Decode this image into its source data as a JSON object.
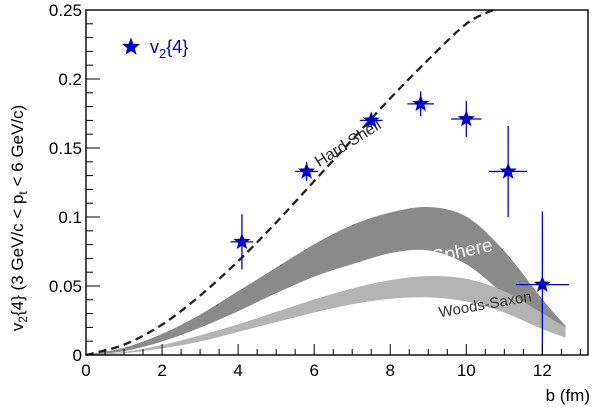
{
  "chart_data": {
    "type": "scatter",
    "xlabel": "b (fm)",
    "ylabel": "v{4} (3 GeV/c < p < 6 GeV/c)",
    "ylabel_parts": {
      "v_base": "v",
      "v_sub": "2",
      "brace": "{4} (3 GeV/c < p",
      "p_sub": "t",
      "tail": " < 6 GeV/c)"
    },
    "xlim": [
      0,
      13.2
    ],
    "ylim": [
      0,
      0.25
    ],
    "x_ticks": [
      0,
      2,
      4,
      6,
      8,
      10,
      12
    ],
    "x_tick_labels": [
      "0",
      "2",
      "4",
      "6",
      "8",
      "10",
      "12"
    ],
    "y_ticks": [
      0,
      0.05,
      0.1,
      0.15,
      0.2,
      0.25
    ],
    "y_tick_labels": [
      "0",
      "0.05",
      "0.1",
      "0.15",
      "0.2",
      "0.25"
    ],
    "grid": false,
    "legend_position": "top-left",
    "legend": {
      "marker": "star",
      "label_base": "v",
      "label_sub": "2",
      "label_tail": "{4}",
      "color": "#0000cc"
    },
    "series": [
      {
        "name": "v2{4}",
        "kind": "points",
        "marker": "star",
        "color": "#0000cc",
        "x": [
          4.1,
          5.8,
          7.5,
          8.8,
          10.0,
          11.1,
          12.0
        ],
        "y": [
          0.082,
          0.133,
          0.17,
          0.182,
          0.171,
          0.133,
          0.051
        ],
        "x_err": [
          0.3,
          0.3,
          0.3,
          0.35,
          0.4,
          0.5,
          0.7
        ],
        "y_err_low": [
          0.02,
          0.007,
          0.005,
          0.009,
          0.013,
          0.033,
          0.051
        ],
        "y_err_high": [
          0.02,
          0.007,
          0.005,
          0.009,
          0.013,
          0.033,
          0.053
        ]
      },
      {
        "name": "Hard Shell",
        "kind": "dashed-line",
        "color": "#222222",
        "x": [
          0,
          1,
          2,
          3,
          4,
          5,
          6,
          7,
          8,
          9,
          10,
          10.7
        ],
        "y": [
          0,
          0.0075,
          0.022,
          0.043,
          0.068,
          0.096,
          0.126,
          0.156,
          0.186,
          0.214,
          0.24,
          0.25
        ]
      },
      {
        "name": "Hard Sphere",
        "kind": "band",
        "color": "#8a8a8a",
        "x": [
          0,
          1,
          2,
          3,
          4,
          5,
          6,
          7,
          8,
          9,
          10,
          11,
          12,
          12.6
        ],
        "y_low": [
          0,
          0.003,
          0.01,
          0.02,
          0.032,
          0.045,
          0.057,
          0.066,
          0.074,
          0.076,
          0.066,
          0.044,
          0.021,
          0.013
        ],
        "y_high": [
          0,
          0.005,
          0.015,
          0.029,
          0.046,
          0.063,
          0.08,
          0.094,
          0.103,
          0.107,
          0.1,
          0.075,
          0.04,
          0.021
        ]
      },
      {
        "name": "Woods-Saxon",
        "kind": "band",
        "color": "#b4b4b4",
        "x": [
          0,
          1,
          2,
          3,
          4,
          5,
          6,
          7,
          8,
          9,
          10,
          11,
          12,
          12.6
        ],
        "y_low": [
          0,
          0.0015,
          0.005,
          0.01,
          0.017,
          0.024,
          0.031,
          0.037,
          0.041,
          0.042,
          0.039,
          0.031,
          0.019,
          0.013
        ],
        "y_high": [
          0,
          0.002,
          0.007,
          0.014,
          0.022,
          0.031,
          0.04,
          0.048,
          0.054,
          0.057,
          0.055,
          0.046,
          0.03,
          0.02
        ]
      }
    ],
    "annotations": [
      {
        "text": "Hard Shell",
        "x": 6.9,
        "y": 0.153,
        "angle": -32,
        "size": 16,
        "color": "#222222"
      },
      {
        "text": "Hard Sphere",
        "x": 9.3,
        "y": 0.071,
        "angle": -12,
        "size": 19,
        "color": "#ffffff"
      },
      {
        "text": "Woods-Saxon",
        "x": 10.5,
        "y": 0.036,
        "angle": -10,
        "size": 15,
        "color": "#333333"
      }
    ]
  }
}
